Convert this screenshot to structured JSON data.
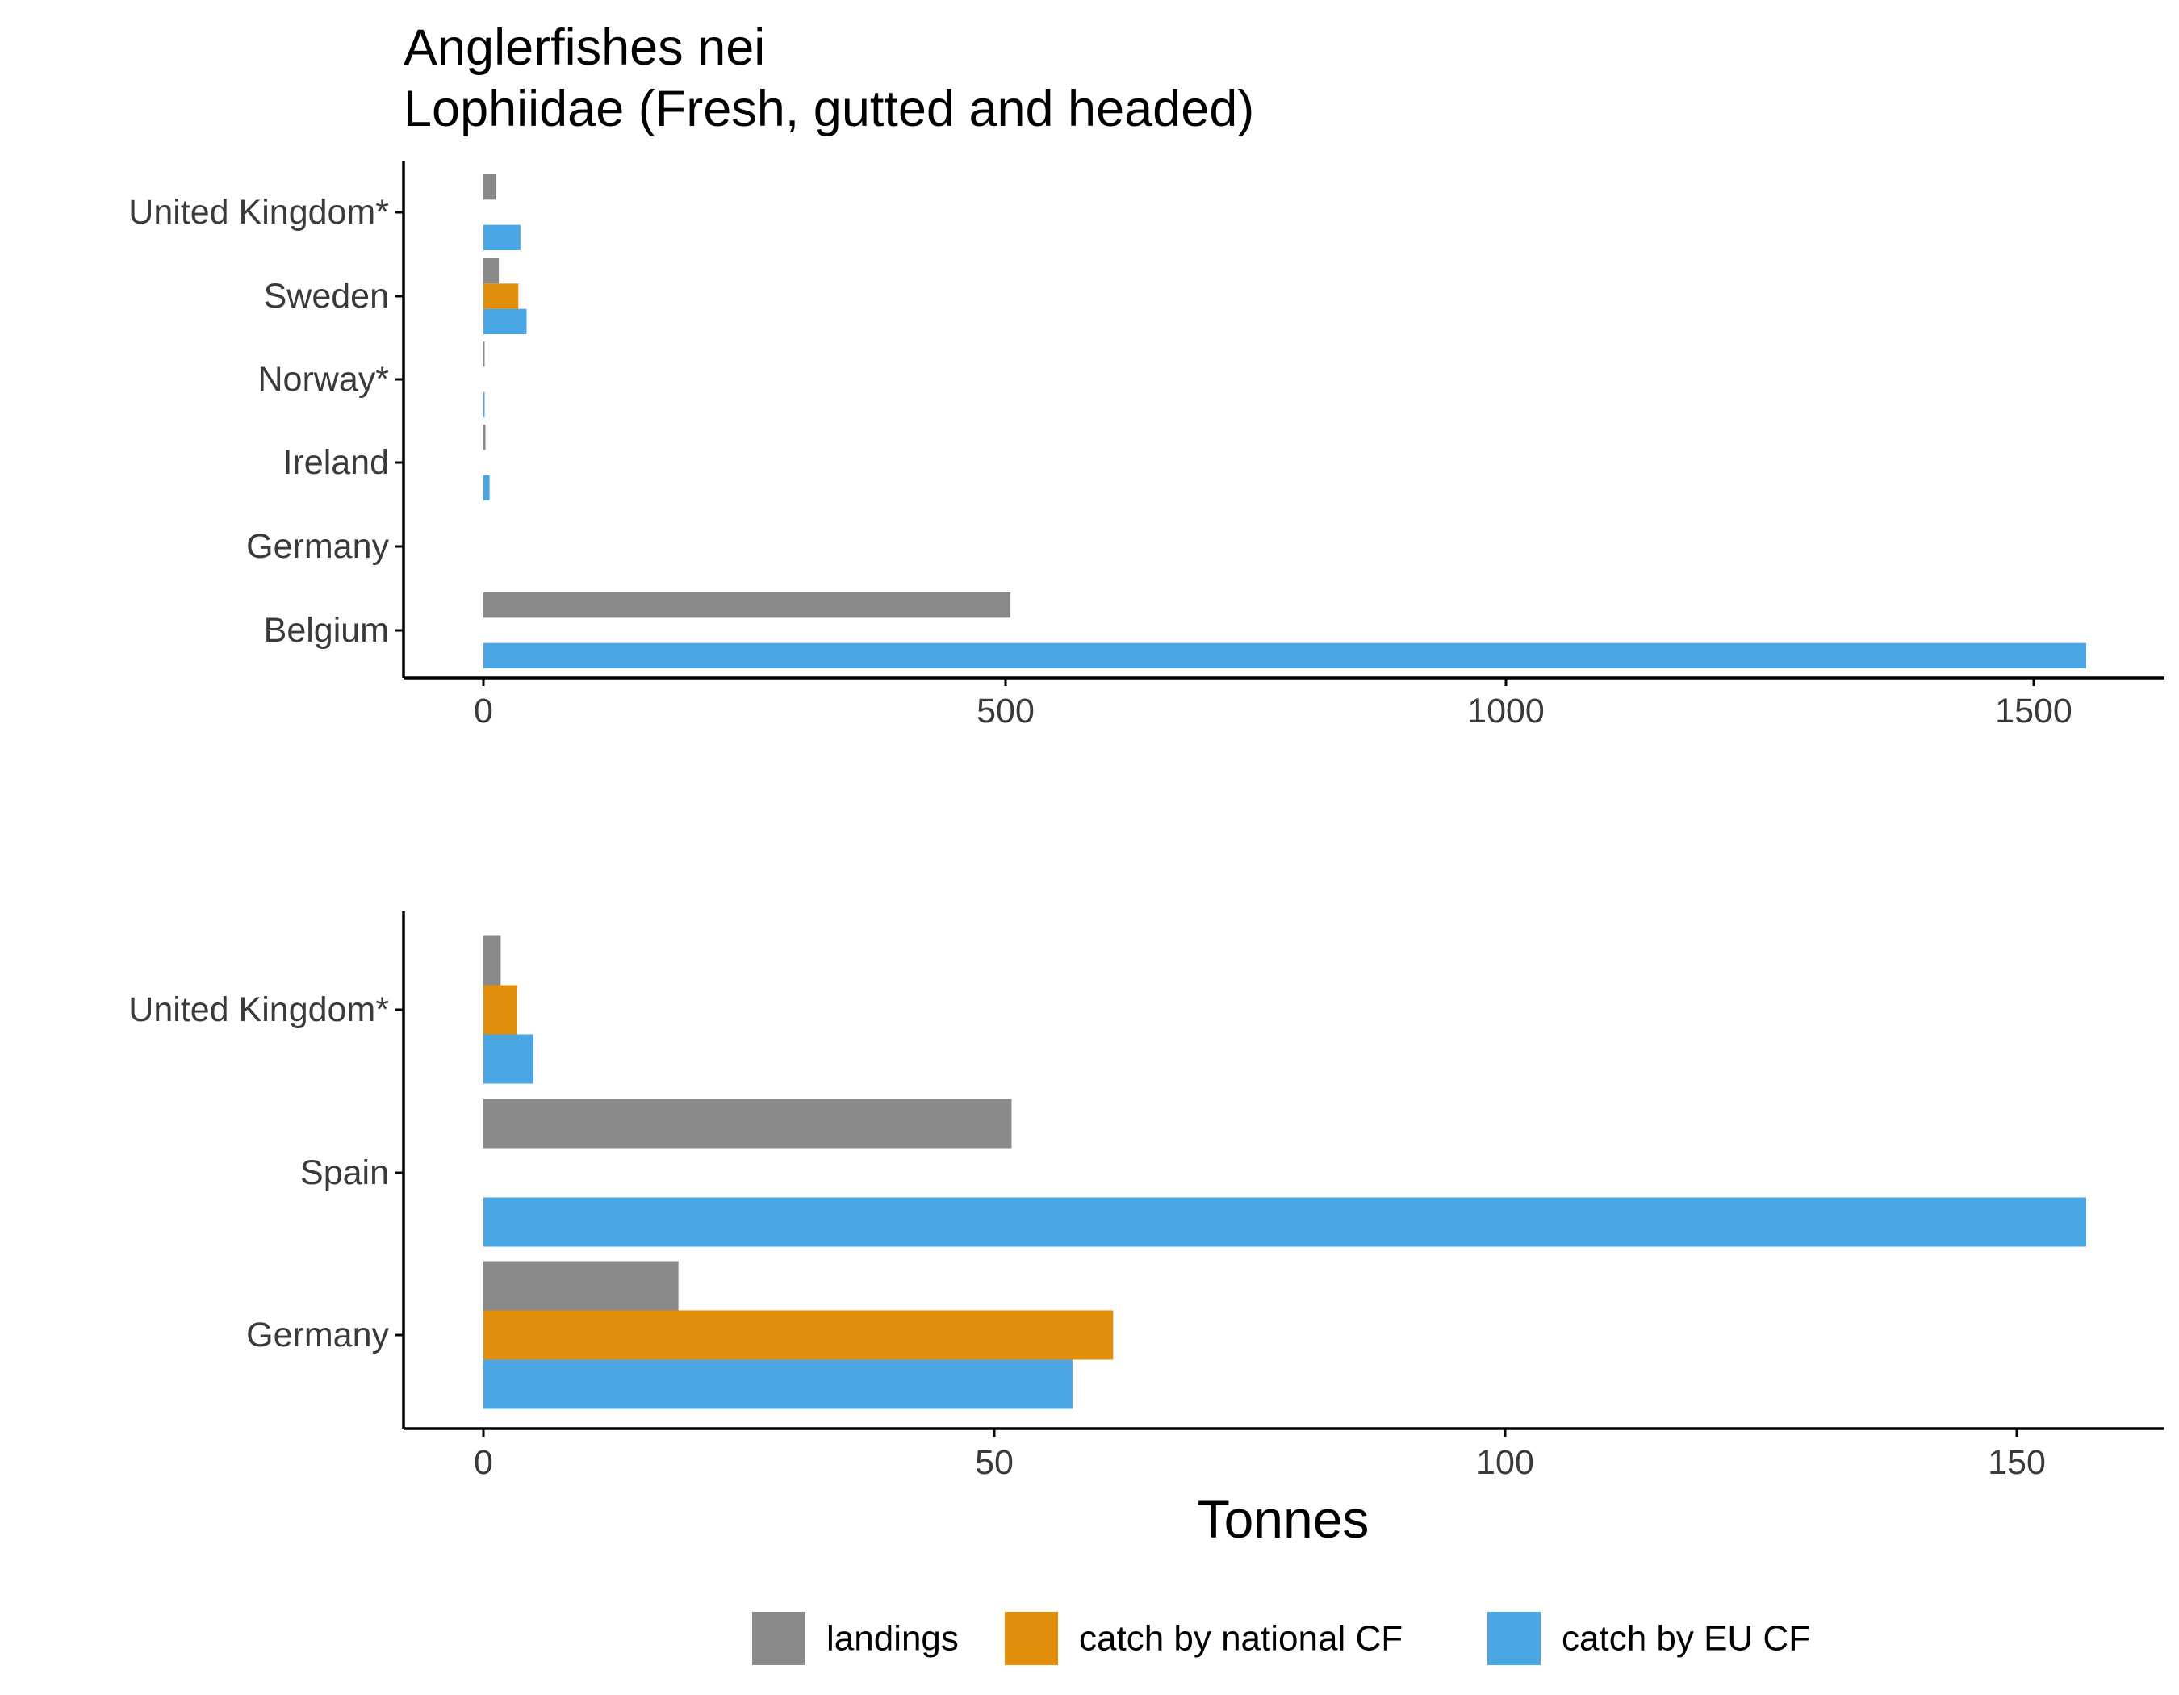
{
  "title": "Anglerfishes nei",
  "subtitle": "Lophiidae (Fresh, gutted and headed)",
  "colors": {
    "landings": "#898989",
    "catch_national": "#E08E0B",
    "catch_eu": "#4AA5E3",
    "axis": "#000000",
    "tick_text": "#3a3a3a"
  },
  "chart_data": [
    {
      "type": "bar",
      "orientation": "horizontal",
      "categories": [
        "United Kingdom*",
        "Sweden",
        "Norway*",
        "Ireland",
        "Germany",
        "Belgium"
      ],
      "series": [
        {
          "name": "landings",
          "values": [
            12,
            15,
            0.5,
            2,
            0,
            513
          ]
        },
        {
          "name": "catch by national CF",
          "values": [
            0,
            34,
            0,
            0,
            0,
            0
          ]
        },
        {
          "name": "catch by EU CF",
          "values": [
            36,
            42,
            1,
            6,
            0,
            1560
          ]
        }
      ],
      "xlim": [
        0,
        1560
      ],
      "xticks": [
        "0",
        "500",
        "1000",
        "1500"
      ],
      "xlabel": "",
      "ylabel": ""
    },
    {
      "type": "bar",
      "orientation": "horizontal",
      "categories": [
        "United Kingdom*",
        "Spain",
        "Germany"
      ],
      "series": [
        {
          "name": "landings",
          "values": [
            1.7,
            52,
            19.2
          ]
        },
        {
          "name": "catch by national CF",
          "values": [
            3.3,
            0,
            62
          ]
        },
        {
          "name": "catch by EU CF",
          "values": [
            4.9,
            157.8,
            58
          ]
        }
      ],
      "xlim": [
        0,
        157.8
      ],
      "xticks": [
        "0",
        "50",
        "100",
        "150"
      ],
      "xlabel": "Tonnes",
      "ylabel": ""
    }
  ],
  "legend": {
    "position": "bottom",
    "items": [
      {
        "label": "landings",
        "color": "#898989"
      },
      {
        "label": "catch by national CF",
        "color": "#E08E0B"
      },
      {
        "label": "catch by EU CF",
        "color": "#4AA5E3"
      }
    ]
  }
}
